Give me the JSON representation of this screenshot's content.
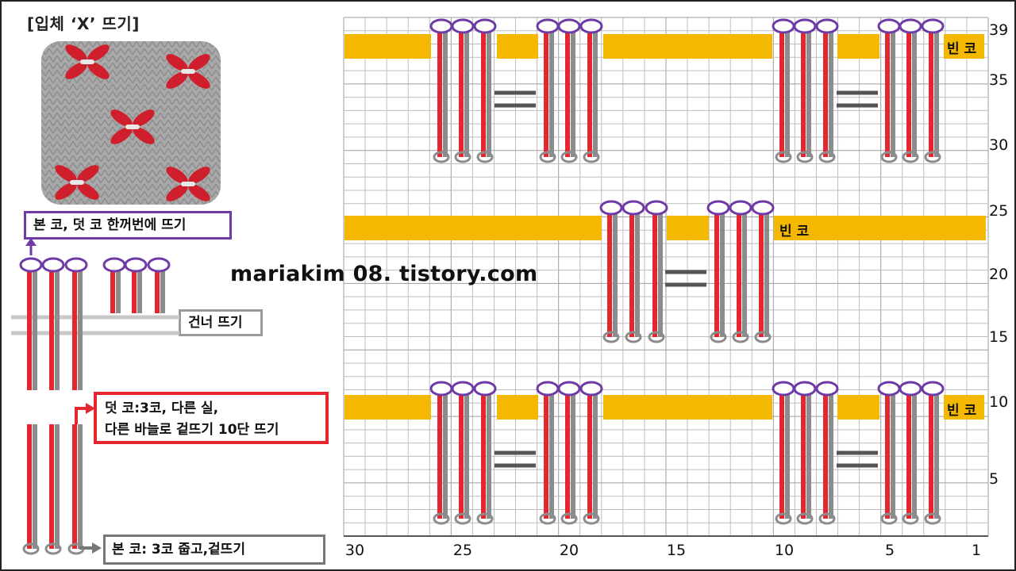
{
  "title": "[입체 ‘X’ 뜨기]",
  "callouts": {
    "purple": "본 코, 덧 코 한꺼번에 뜨기",
    "skip": "건너 뜨기",
    "red_line1": "덧 코:3코, 다른 실,",
    "red_line2": "다른 바늘로 겉뜨기 10단 뜨기",
    "base": "본 코: 3코 줍고,겉뜨기"
  },
  "watermark": "mariakim 08. tistory.com",
  "grid": {
    "row_labels": [
      "39",
      "35",
      "30",
      "25",
      "20",
      "15",
      "10",
      "5"
    ],
    "col_labels": [
      "30",
      "25",
      "20",
      "15",
      "10",
      "5",
      "1"
    ],
    "empty_stitch_label": "빈 코"
  },
  "colors": {
    "yarn_red": "#e5262f",
    "yarn_gray": "#8c8c8c",
    "loop_purple": "#6e3aa6",
    "empty_stitch_yellow": "#f5b800",
    "grid_line": "#bdbdbd"
  },
  "icons": [
    "arrow-up-icon",
    "arrow-right-icon",
    "equals-icon"
  ]
}
